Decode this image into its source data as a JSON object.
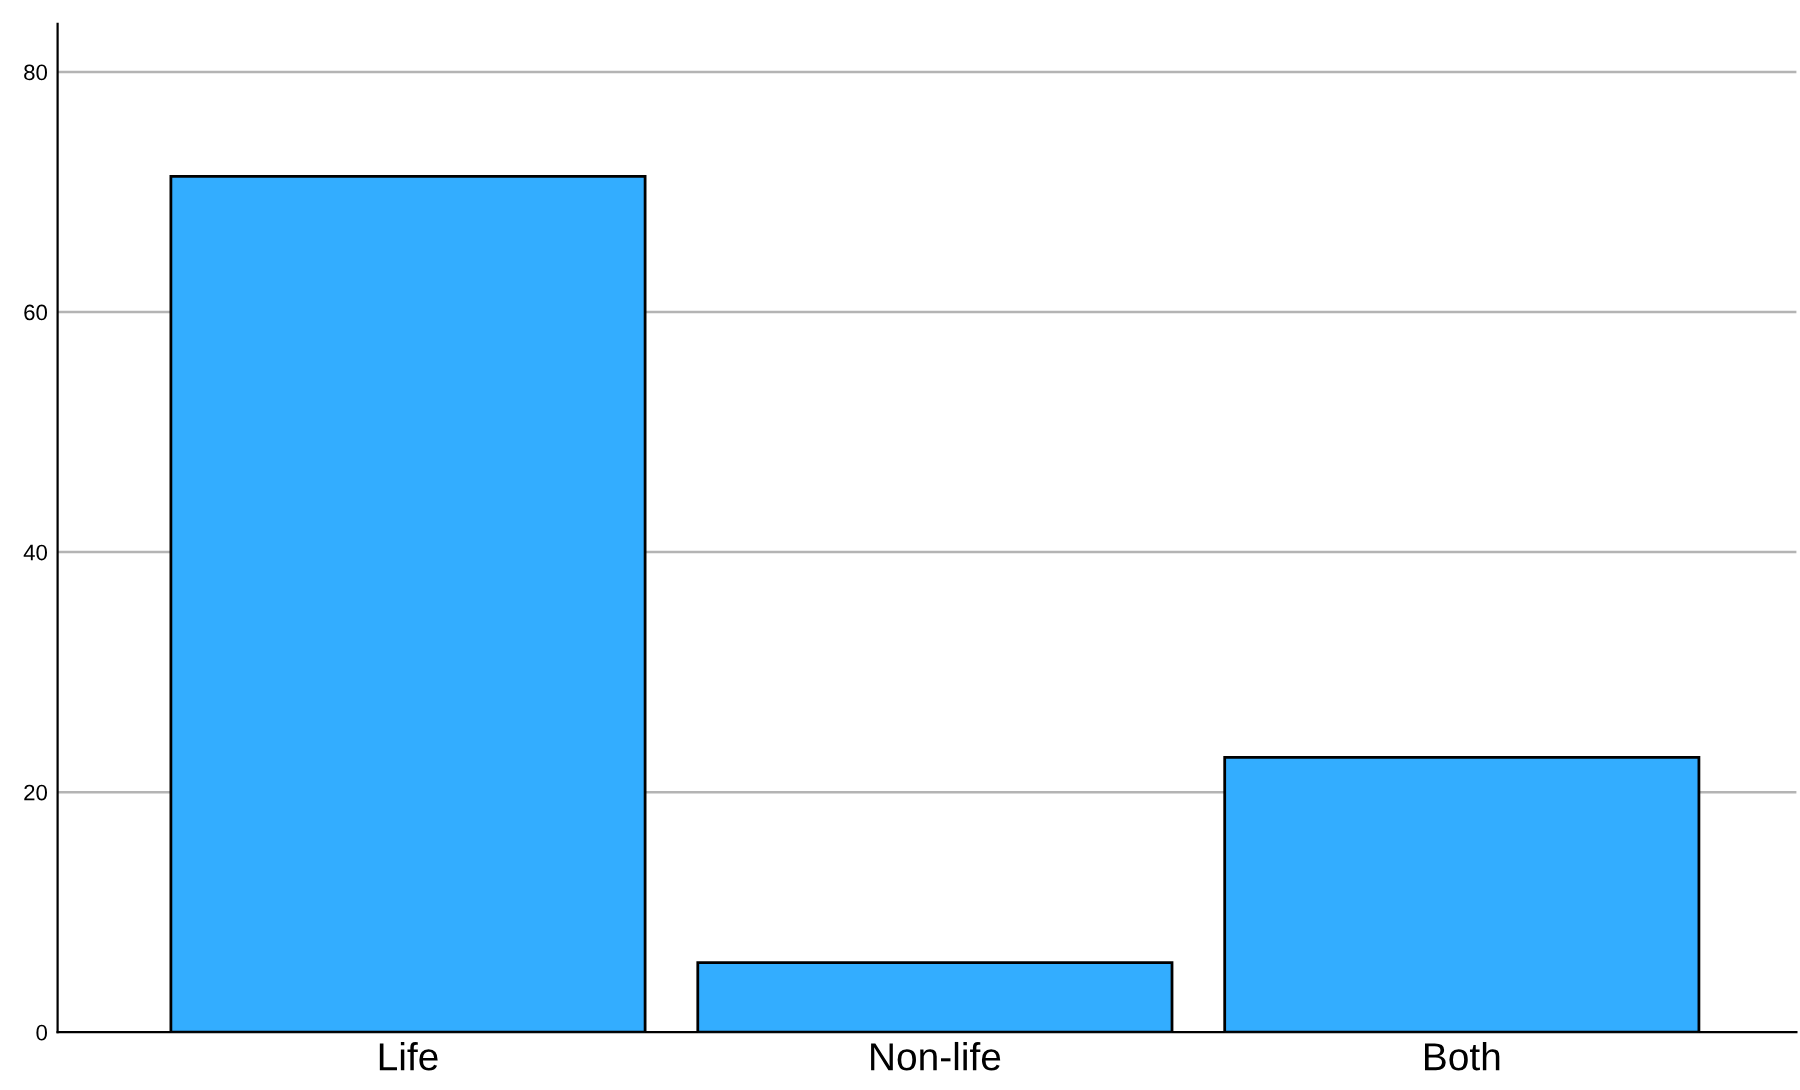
{
  "chart_data": {
    "type": "bar",
    "categories": [
      "Life",
      "Non-life",
      "Both"
    ],
    "values": [
      71.3,
      5.8,
      22.9
    ],
    "color": "#33adff",
    "ylim": [
      0,
      84
    ],
    "yticks": [
      0,
      20,
      40,
      60,
      80
    ],
    "grid": "y"
  }
}
